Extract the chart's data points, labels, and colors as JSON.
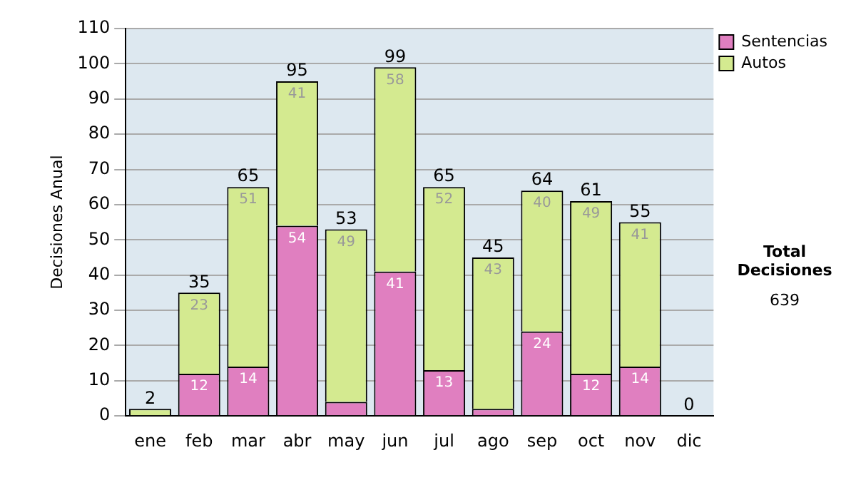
{
  "chart_data": {
    "type": "bar",
    "stacked": true,
    "ylabel": "Decisiones Anual",
    "categories": [
      "ene",
      "feb",
      "mar",
      "abr",
      "may",
      "jun",
      "jul",
      "ago",
      "sep",
      "oct",
      "nov",
      "dic"
    ],
    "series": [
      {
        "name": "Sentencias",
        "color": "#e07fc0",
        "values": [
          0,
          12,
          14,
          54,
          4,
          41,
          13,
          2,
          24,
          12,
          14,
          0
        ],
        "value_labels": [
          null,
          "12",
          "14",
          "54",
          null,
          "41",
          "13",
          null,
          "24",
          "12",
          "14",
          null
        ]
      },
      {
        "name": "Autos",
        "color": "#d4ea90",
        "values": [
          2,
          23,
          51,
          41,
          49,
          58,
          52,
          43,
          40,
          49,
          41,
          0
        ],
        "value_labels": [
          null,
          "23",
          "51",
          "41",
          "49",
          "58",
          "52",
          "43",
          "40",
          "49",
          "41",
          null
        ]
      }
    ],
    "totals": [
      "2",
      "35",
      "65",
      "95",
      "53",
      "99",
      "65",
      "45",
      "64",
      "61",
      "55",
      "0"
    ],
    "ylim": [
      0,
      110
    ],
    "yticks": [
      0,
      10,
      20,
      30,
      40,
      50,
      60,
      70,
      80,
      90,
      100,
      110
    ],
    "grid": "y",
    "legend": "right",
    "annotations": [
      "Total Decisiones",
      "639"
    ]
  }
}
